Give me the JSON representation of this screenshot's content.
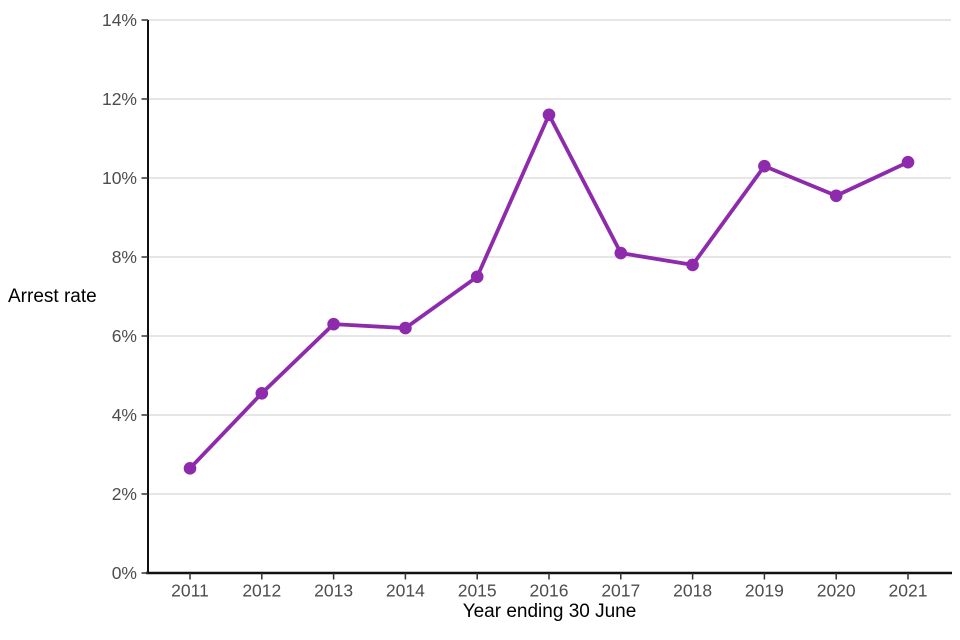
{
  "chart_data": {
    "type": "line",
    "title": "",
    "xlabel": "Year ending 30 June",
    "ylabel": "Arrest rate",
    "categories": [
      "2011",
      "2012",
      "2013",
      "2014",
      "2015",
      "2016",
      "2017",
      "2018",
      "2019",
      "2020",
      "2021"
    ],
    "series": [
      {
        "name": "Arrest rate",
        "values": [
          2.65,
          4.55,
          6.3,
          6.2,
          7.5,
          11.6,
          8.1,
          7.8,
          10.3,
          9.55,
          10.4
        ],
        "color": "#8E2AAC"
      }
    ],
    "ylim": [
      0,
      14
    ],
    "yticks": [
      {
        "value": 0,
        "label": "0%"
      },
      {
        "value": 2,
        "label": "2%"
      },
      {
        "value": 4,
        "label": "4%"
      },
      {
        "value": 6,
        "label": "6%"
      },
      {
        "value": 8,
        "label": "8%"
      },
      {
        "value": 10,
        "label": "10%"
      },
      {
        "value": 12,
        "label": "12%"
      },
      {
        "value": 14,
        "label": "14%"
      }
    ],
    "grid": true,
    "legend_position": "none"
  },
  "colors": {
    "line": "#8E2AAC",
    "gridline": "#E3E3E3",
    "axis_line": "#111111",
    "tick_mark": "#333333",
    "tick_label": "#4D4D4D",
    "axis_title": "#000000",
    "background": "#FFFFFF"
  }
}
